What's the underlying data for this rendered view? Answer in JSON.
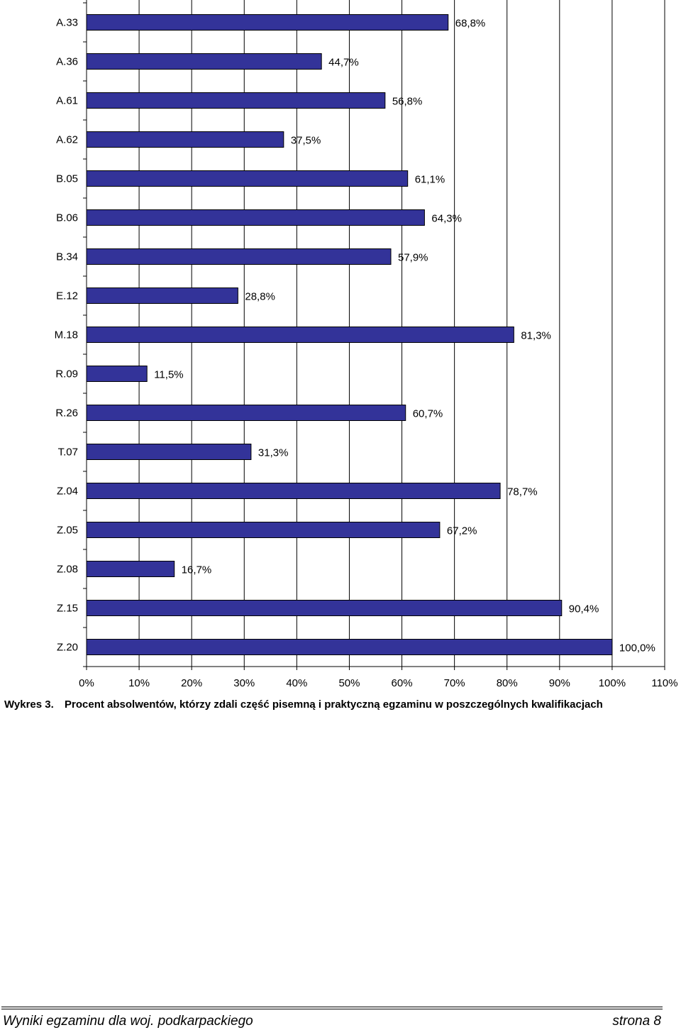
{
  "chart_data": {
    "type": "bar",
    "orientation": "horizontal",
    "categories": [
      "A.33",
      "A.36",
      "A.61",
      "A.62",
      "B.05",
      "B.06",
      "B.34",
      "E.12",
      "M.18",
      "R.09",
      "R.26",
      "T.07",
      "Z.04",
      "Z.05",
      "Z.08",
      "Z.15",
      "Z.20"
    ],
    "values": [
      68.8,
      44.7,
      56.8,
      37.5,
      61.1,
      64.3,
      57.9,
      28.8,
      81.3,
      11.5,
      60.7,
      31.3,
      78.7,
      67.2,
      16.7,
      90.4,
      100.0
    ],
    "value_labels": [
      "68,8%",
      "44,7%",
      "56,8%",
      "37,5%",
      "61,1%",
      "64,3%",
      "57,9%",
      "28,8%",
      "81,3%",
      "11,5%",
      "60,7%",
      "31,3%",
      "78,7%",
      "67,2%",
      "16,7%",
      "90,4%",
      "100,0%"
    ],
    "xlim": [
      0,
      110
    ],
    "x_ticks": [
      0,
      10,
      20,
      30,
      40,
      50,
      60,
      70,
      80,
      90,
      100,
      110
    ],
    "x_tick_labels": [
      "0%",
      "10%",
      "20%",
      "30%",
      "40%",
      "50%",
      "60%",
      "70%",
      "80%",
      "90%",
      "100%",
      "110%"
    ],
    "grid": "vertical",
    "legend": "none",
    "bar_color": "#333399",
    "xlabel": "",
    "ylabel": ""
  },
  "caption": {
    "label": "Wykres 3.",
    "text": "Procent absolwentów, którzy zdali część pisemną i praktyczną egzaminu w poszczególnych kwalifikacjach"
  },
  "footer": {
    "left": "Wyniki egzaminu dla woj. podkarpackiego",
    "right": "strona 8"
  }
}
